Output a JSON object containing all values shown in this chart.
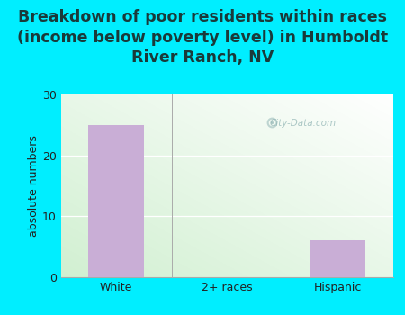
{
  "categories": [
    "White",
    "2+ races",
    "Hispanic"
  ],
  "values": [
    25,
    0,
    6
  ],
  "bar_color": "#c9aed6",
  "title_line1": "Breakdown of poor residents within races",
  "title_line2": "(income below poverty level) in Humboldt",
  "title_line3": "River Ranch, NV",
  "ylabel": "absolute numbers",
  "ylim": [
    0,
    30
  ],
  "yticks": [
    0,
    10,
    20,
    30
  ],
  "bg_color": "#00eeff",
  "watermark": "City-Data.com",
  "title_fontsize": 12.5,
  "ylabel_fontsize": 9,
  "tick_fontsize": 9,
  "grid_color": "#d0e8c0",
  "bottom_color": "#c8eab0",
  "top_color": "#f8fffc"
}
